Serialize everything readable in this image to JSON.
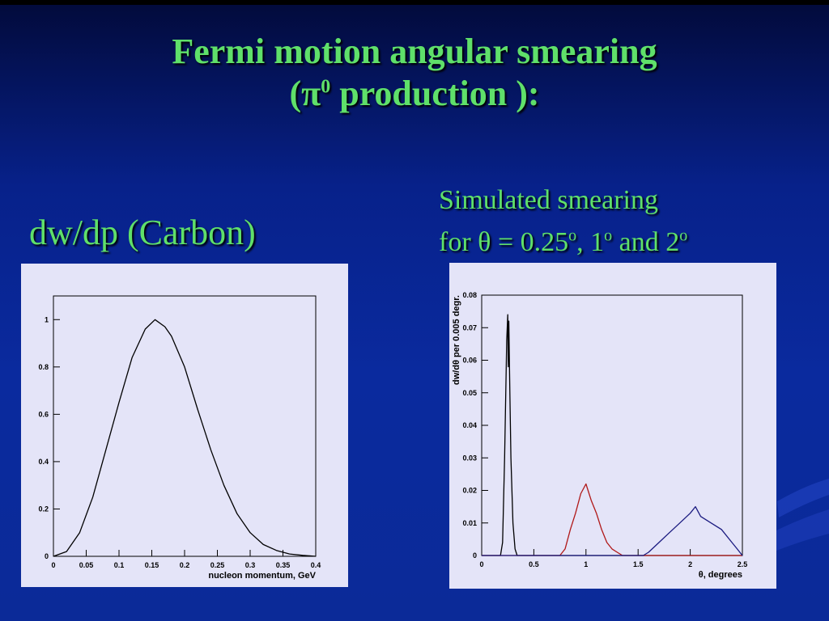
{
  "slide": {
    "title_line1": "Fermi motion angular smearing",
    "title_line2_pre": "(π",
    "title_line2_sup": "0",
    "title_line2_post": " production ):",
    "left_heading": "dw/dp (Carbon)",
    "right_heading_line1": "Simulated smearing",
    "right_heading_for": "for ",
    "right_heading_theta": "θ",
    "right_heading_v1": " = 0.25",
    "right_heading_deg": "o",
    "right_heading_v2": ", 1",
    "right_heading_v3": " and 2"
  },
  "colors": {
    "title_green": "#5fe06a",
    "panel_bg": "#e4e4f8",
    "series_black": "#000000",
    "series_red": "#b01818",
    "series_blue": "#1a1a80"
  },
  "chart_data": [
    {
      "type": "line",
      "title": "",
      "xlabel": "nucleon momentum, GeV",
      "ylabel": "",
      "xlim": [
        0,
        0.4
      ],
      "ylim": [
        0,
        1.1
      ],
      "xticks": [
        "0",
        "0.05",
        "0.1",
        "0.15",
        "0.2",
        "0.25",
        "0.3",
        "0.35",
        "0.4"
      ],
      "xtick_values": [
        0,
        0.05,
        0.1,
        0.15,
        0.2,
        0.25,
        0.3,
        0.35,
        0.4
      ],
      "yticks": [
        "0",
        "0.2",
        "0.4",
        "0.6",
        "0.8",
        "1"
      ],
      "ytick_values": [
        0,
        0.2,
        0.4,
        0.6,
        0.8,
        1
      ],
      "series": [
        {
          "x": [
            0,
            0.02,
            0.04,
            0.06,
            0.08,
            0.1,
            0.12,
            0.14,
            0.155,
            0.17,
            0.18,
            0.2,
            0.22,
            0.24,
            0.26,
            0.28,
            0.3,
            0.32,
            0.34,
            0.36,
            0.38,
            0.4
          ],
          "values": [
            0,
            0.02,
            0.1,
            0.25,
            0.45,
            0.65,
            0.84,
            0.96,
            1.0,
            0.97,
            0.93,
            0.8,
            0.62,
            0.45,
            0.3,
            0.18,
            0.1,
            0.05,
            0.025,
            0.01,
            0.004,
            0.0
          ]
        }
      ]
    },
    {
      "type": "line",
      "title": "",
      "xlabel": "θ, degrees",
      "ylabel": "dw/dθ per 0.005 degr.",
      "xlim": [
        0,
        2.5
      ],
      "ylim": [
        0,
        0.08
      ],
      "xticks": [
        "0",
        "0.5",
        "1",
        "1.5",
        "2",
        "2.5"
      ],
      "xtick_values": [
        0,
        0.5,
        1,
        1.5,
        2,
        2.5
      ],
      "yticks": [
        "0",
        "0.01",
        "0.02",
        "0.03",
        "0.04",
        "0.05",
        "0.06",
        "0.07",
        "0.08"
      ],
      "ytick_values": [
        0,
        0.01,
        0.02,
        0.03,
        0.04,
        0.05,
        0.06,
        0.07,
        0.08
      ],
      "series": [
        {
          "color": "#000000",
          "x": [
            0,
            0.18,
            0.2,
            0.22,
            0.24,
            0.25,
            0.255,
            0.26,
            0.27,
            0.28,
            0.3,
            0.32,
            0.34,
            2.5
          ],
          "values": [
            0,
            0,
            0.004,
            0.03,
            0.066,
            0.074,
            0.058,
            0.072,
            0.05,
            0.03,
            0.01,
            0.002,
            0,
            0
          ]
        },
        {
          "color": "#b01818",
          "x": [
            0,
            0.75,
            0.8,
            0.85,
            0.9,
            0.95,
            1.0,
            1.05,
            1.1,
            1.15,
            1.2,
            1.25,
            1.3,
            1.35,
            2.5
          ],
          "values": [
            0,
            0,
            0.002,
            0.008,
            0.013,
            0.019,
            0.022,
            0.017,
            0.013,
            0.008,
            0.004,
            0.002,
            0.001,
            0,
            0
          ]
        },
        {
          "color": "#1a1a80",
          "x": [
            0,
            1.55,
            1.6,
            1.7,
            1.8,
            1.9,
            2.0,
            2.05,
            2.1,
            2.2,
            2.3,
            2.4,
            2.45,
            2.5
          ],
          "values": [
            0,
            0,
            0.001,
            0.004,
            0.007,
            0.01,
            0.013,
            0.015,
            0.012,
            0.01,
            0.008,
            0.004,
            0.002,
            0
          ]
        }
      ]
    }
  ]
}
